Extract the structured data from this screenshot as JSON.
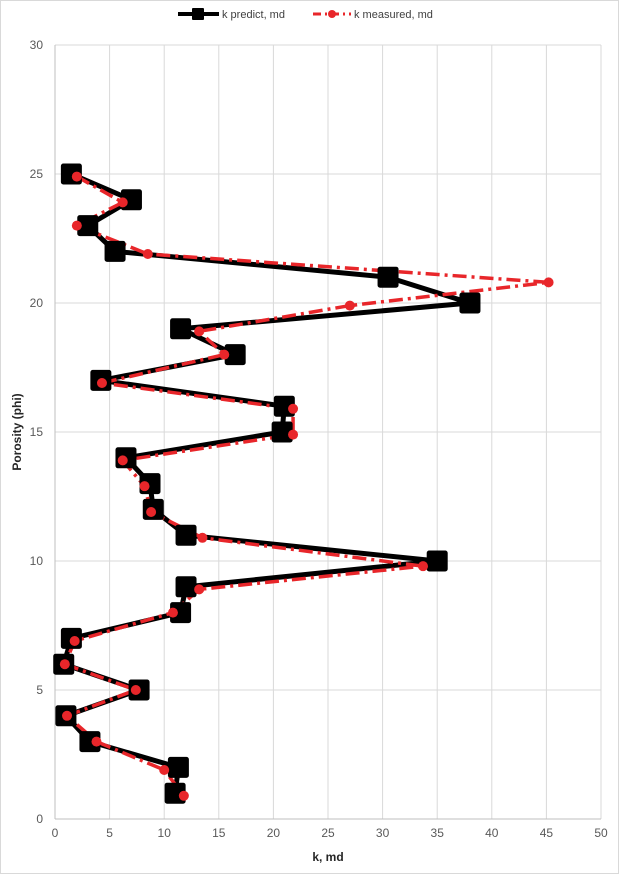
{
  "chart_data": {
    "type": "line",
    "xlabel": "k, md",
    "ylabel": "Porosity (phi)",
    "xlim": [
      0,
      50
    ],
    "ylim": [
      0,
      30
    ],
    "x_ticks": [
      "0",
      "5",
      "10",
      "15",
      "20",
      "25",
      "30",
      "35",
      "40",
      "45",
      "50"
    ],
    "y_ticks": [
      "0",
      "5",
      "10",
      "15",
      "20",
      "25",
      "30"
    ],
    "grid": true,
    "legend_position": "top",
    "series": [
      {
        "name": "k predict, md",
        "color": "#000000",
        "line_style": "solid",
        "marker": "square",
        "points": [
          {
            "x": 1.5,
            "y": 25
          },
          {
            "x": 7,
            "y": 24
          },
          {
            "x": 3,
            "y": 23
          },
          {
            "x": 5.5,
            "y": 22
          },
          {
            "x": 30.5,
            "y": 21
          },
          {
            "x": 38,
            "y": 20
          },
          {
            "x": 11.5,
            "y": 19
          },
          {
            "x": 16.5,
            "y": 18
          },
          {
            "x": 4.2,
            "y": 17
          },
          {
            "x": 21,
            "y": 16
          },
          {
            "x": 20.8,
            "y": 15
          },
          {
            "x": 6.5,
            "y": 14
          },
          {
            "x": 8.7,
            "y": 13
          },
          {
            "x": 9,
            "y": 12
          },
          {
            "x": 12,
            "y": 11
          },
          {
            "x": 35,
            "y": 10
          },
          {
            "x": 12,
            "y": 9
          },
          {
            "x": 11.5,
            "y": 8
          },
          {
            "x": 1.5,
            "y": 7
          },
          {
            "x": 0.8,
            "y": 6
          },
          {
            "x": 7.7,
            "y": 5
          },
          {
            "x": 1,
            "y": 4
          },
          {
            "x": 3.2,
            "y": 3
          },
          {
            "x": 11.3,
            "y": 2
          },
          {
            "x": 11,
            "y": 1
          }
        ]
      },
      {
        "name": "k measured, md",
        "color": "#e8262a",
        "line_style": "dash-dot",
        "marker": "circle",
        "points": [
          {
            "x": 2,
            "y": 24.9
          },
          {
            "x": 6.2,
            "y": 23.9
          },
          {
            "x": 2,
            "y": 23
          },
          {
            "x": 8.5,
            "y": 21.9
          },
          {
            "x": 45.2,
            "y": 20.8
          },
          {
            "x": 27,
            "y": 19.9
          },
          {
            "x": 13.2,
            "y": 18.9
          },
          {
            "x": 15.5,
            "y": 18
          },
          {
            "x": 4.3,
            "y": 16.9
          },
          {
            "x": 21.8,
            "y": 15.9
          },
          {
            "x": 21.8,
            "y": 14.9
          },
          {
            "x": 6.2,
            "y": 13.9
          },
          {
            "x": 8.2,
            "y": 12.9
          },
          {
            "x": 8.8,
            "y": 11.9
          },
          {
            "x": 13.5,
            "y": 10.9
          },
          {
            "x": 33.7,
            "y": 9.8
          },
          {
            "x": 13.2,
            "y": 8.9
          },
          {
            "x": 10.8,
            "y": 8
          },
          {
            "x": 1.8,
            "y": 6.9
          },
          {
            "x": 0.9,
            "y": 6
          },
          {
            "x": 7.4,
            "y": 5
          },
          {
            "x": 1.1,
            "y": 4
          },
          {
            "x": 3.8,
            "y": 3
          },
          {
            "x": 10,
            "y": 1.9
          },
          {
            "x": 11.8,
            "y": 0.9
          }
        ]
      }
    ]
  }
}
